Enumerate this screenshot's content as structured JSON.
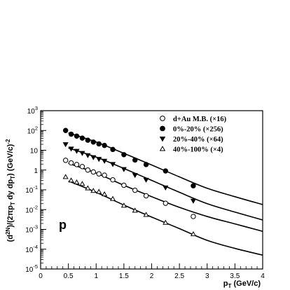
{
  "chart_data": {
    "type": "scatter",
    "title": "",
    "xlabel": "p_T (GeV/c)",
    "ylabel": "(d^2N)/(2πp_T dy dp_T) (GeV/c)^-2",
    "xlim": [
      0,
      4
    ],
    "ylim": [
      1e-05,
      1000
    ],
    "yscale": "log",
    "grid": false,
    "legend_position": "top-right",
    "panel_label": "p",
    "x_ticks": [
      "0",
      "0.5",
      "1",
      "1.5",
      "2",
      "2.5",
      "3",
      "3.5",
      "4"
    ],
    "y_ticks": [
      {
        "exp": 3,
        "label": "10^3"
      },
      {
        "exp": 2,
        "label": "10^2"
      },
      {
        "exp": 1,
        "label": "10"
      },
      {
        "exp": 0,
        "label": "1"
      },
      {
        "exp": -1,
        "label": "10^-1"
      },
      {
        "exp": -2,
        "label": "10^-2"
      },
      {
        "exp": -3,
        "label": "10^-3"
      },
      {
        "exp": -4,
        "label": "10^-4"
      },
      {
        "exp": -5,
        "label": "10^-5"
      }
    ],
    "series": [
      {
        "name": "d+Au M.B. (×16)",
        "marker": "open-circle",
        "x": [
          0.45,
          0.55,
          0.65,
          0.75,
          0.85,
          0.95,
          1.05,
          1.15,
          1.3,
          1.5,
          1.7,
          1.9,
          2.25,
          2.75
        ],
        "y": [
          3.1,
          2.3,
          1.9,
          1.5,
          1.0,
          0.8,
          0.64,
          0.55,
          0.32,
          0.17,
          0.095,
          0.05,
          0.021,
          0.0045
        ],
        "fit_x": [
          0.5,
          1.0,
          1.5,
          2.0,
          2.5,
          3.0,
          3.5,
          4.0
        ],
        "fit_y": [
          2.2,
          0.7,
          0.17,
          0.045,
          0.013,
          0.0045,
          0.0019,
          0.0008
        ]
      },
      {
        "name": "0%-20% (×256)",
        "marker": "filled-circle",
        "x": [
          0.45,
          0.55,
          0.65,
          0.75,
          0.85,
          0.95,
          1.05,
          1.15,
          1.3,
          1.5,
          1.7,
          1.9,
          2.25,
          2.75
        ],
        "y": [
          100,
          65,
          52,
          41,
          32,
          26,
          21,
          17.5,
          11,
          6,
          3.2,
          1.9,
          0.9,
          0.16
        ],
        "fit_x": [
          0.5,
          1.0,
          1.5,
          2.0,
          2.5,
          3.0,
          3.5,
          4.0
        ],
        "fit_y": [
          75,
          26,
          7,
          1.8,
          0.45,
          0.12,
          0.045,
          0.018
        ]
      },
      {
        "name": "20%-40% (×64)",
        "marker": "filled-triangle-down",
        "x": [
          0.45,
          0.55,
          0.65,
          0.75,
          0.85,
          0.95,
          1.05,
          1.15,
          1.3,
          1.5,
          1.7,
          1.9,
          2.25,
          2.75
        ],
        "y": [
          20,
          12,
          9.2,
          7.2,
          5.6,
          4.4,
          3.6,
          2.9,
          2.0,
          1.1,
          0.55,
          0.32,
          0.13,
          0.028
        ],
        "fit_x": [
          0.5,
          1.0,
          1.5,
          2.0,
          2.5,
          3.0,
          3.5,
          4.0
        ],
        "fit_y": [
          13,
          4.5,
          1.2,
          0.3,
          0.075,
          0.02,
          0.0075,
          0.003
        ]
      },
      {
        "name": "40%-100% (×4)",
        "marker": "open-triangle-up",
        "x": [
          0.45,
          0.55,
          0.65,
          0.75,
          0.85,
          0.95,
          1.05,
          1.15,
          1.3,
          1.5,
          1.7,
          1.9,
          2.25,
          2.75
        ],
        "y": [
          0.45,
          0.3,
          0.24,
          0.2,
          0.12,
          0.09,
          0.08,
          0.06,
          0.035,
          0.016,
          0.009,
          0.0055,
          0.0022,
          0.00058
        ],
        "fit_x": [
          0.5,
          1.0,
          1.5,
          2.0,
          2.5,
          3.0,
          3.5,
          4.0
        ],
        "fit_y": [
          0.28,
          0.075,
          0.017,
          0.0042,
          0.0011,
          0.00028,
          0.00011,
          5e-05
        ]
      }
    ]
  }
}
